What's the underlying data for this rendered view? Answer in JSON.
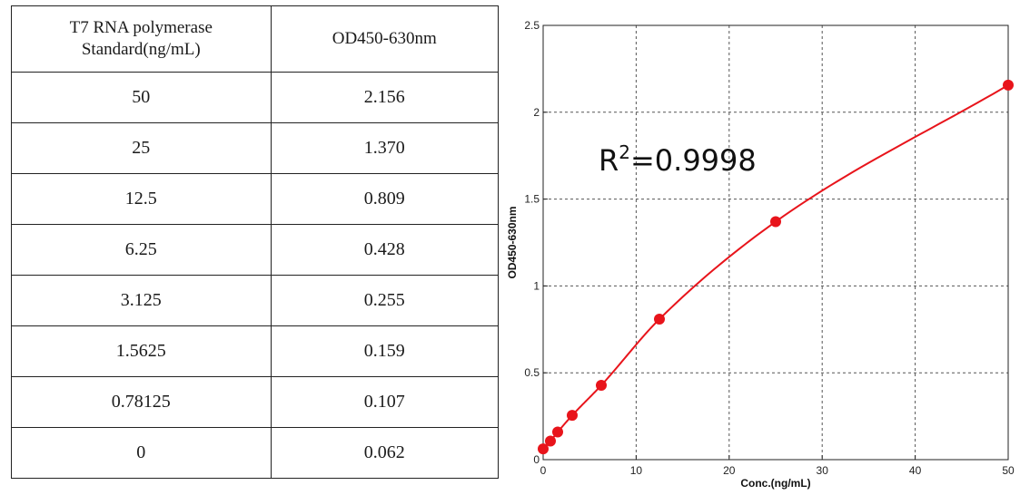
{
  "table": {
    "header": {
      "col1_line1": "T7 RNA polymerase",
      "col1_line2": "Standard(ng/mL)",
      "col2": "OD450-630nm"
    },
    "rows": [
      {
        "conc": "50",
        "od": "2.156"
      },
      {
        "conc": "25",
        "od": "1.370"
      },
      {
        "conc": "12.5",
        "od": "0.809"
      },
      {
        "conc": "6.25",
        "od": "0.428"
      },
      {
        "conc": "3.125",
        "od": "0.255"
      },
      {
        "conc": "1.5625",
        "od": "0.159"
      },
      {
        "conc": "0.78125",
        "od": "0.107"
      },
      {
        "conc": "0",
        "od": "0.062"
      }
    ]
  },
  "chart_data": {
    "type": "scatter",
    "x": [
      0,
      0.78125,
      1.5625,
      3.125,
      6.25,
      12.5,
      25,
      50
    ],
    "y": [
      0.062,
      0.107,
      0.159,
      0.255,
      0.428,
      0.809,
      1.37,
      2.156
    ],
    "xlabel": "Conc.(ng/mL)",
    "ylabel": "OD450-630nm",
    "xlim": [
      0,
      50
    ],
    "ylim": [
      0,
      2.5
    ],
    "xticks": [
      "0",
      "10",
      "20",
      "30",
      "40",
      "50"
    ],
    "yticks": [
      "0",
      "0.5",
      "1",
      "1.5",
      "2",
      "2.5"
    ],
    "grid": true,
    "fit_line": true,
    "annotation": {
      "r2_prefix": "R",
      "r2_sup": "2",
      "r2_value": "=0.9998"
    },
    "colors": {
      "marker": "#e8141b",
      "line": "#e8141b",
      "grid": "#555555"
    }
  }
}
